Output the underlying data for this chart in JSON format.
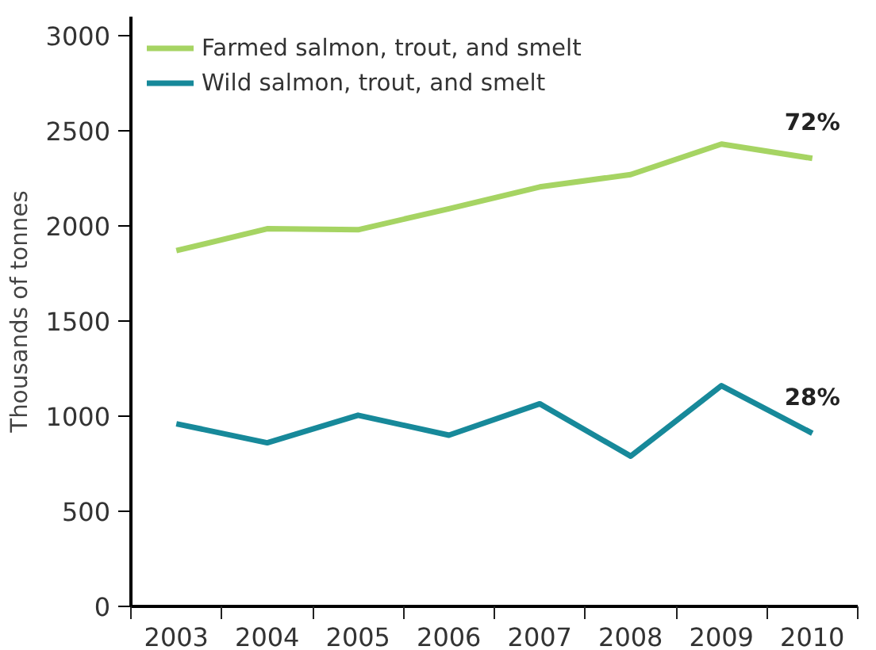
{
  "chart_data": {
    "type": "line",
    "ylabel": "Thousands of tonnes",
    "categories": [
      "2003",
      "2004",
      "2005",
      "2006",
      "2007",
      "2008",
      "2009",
      "2010"
    ],
    "series": [
      {
        "name": "Farmed salmon, trout, and smelt",
        "color": "#a6d463",
        "values": [
          1870,
          1985,
          1980,
          2090,
          2205,
          2270,
          2430,
          2355
        ]
      },
      {
        "name": "Wild salmon, trout, and smelt",
        "color": "#17899a",
        "values": [
          960,
          860,
          1005,
          900,
          1065,
          790,
          1160,
          910
        ]
      }
    ],
    "ylim": [
      0,
      3100
    ],
    "yticks": [
      0,
      500,
      1000,
      1500,
      2000,
      2500,
      3000
    ],
    "annotations": [
      {
        "text": "72%",
        "x": "2010",
        "y": 2355
      },
      {
        "text": "28%",
        "x": "2010",
        "y": 910
      }
    ],
    "grid": false,
    "legend": "top left",
    "marker": "none",
    "line_style": "solid"
  }
}
